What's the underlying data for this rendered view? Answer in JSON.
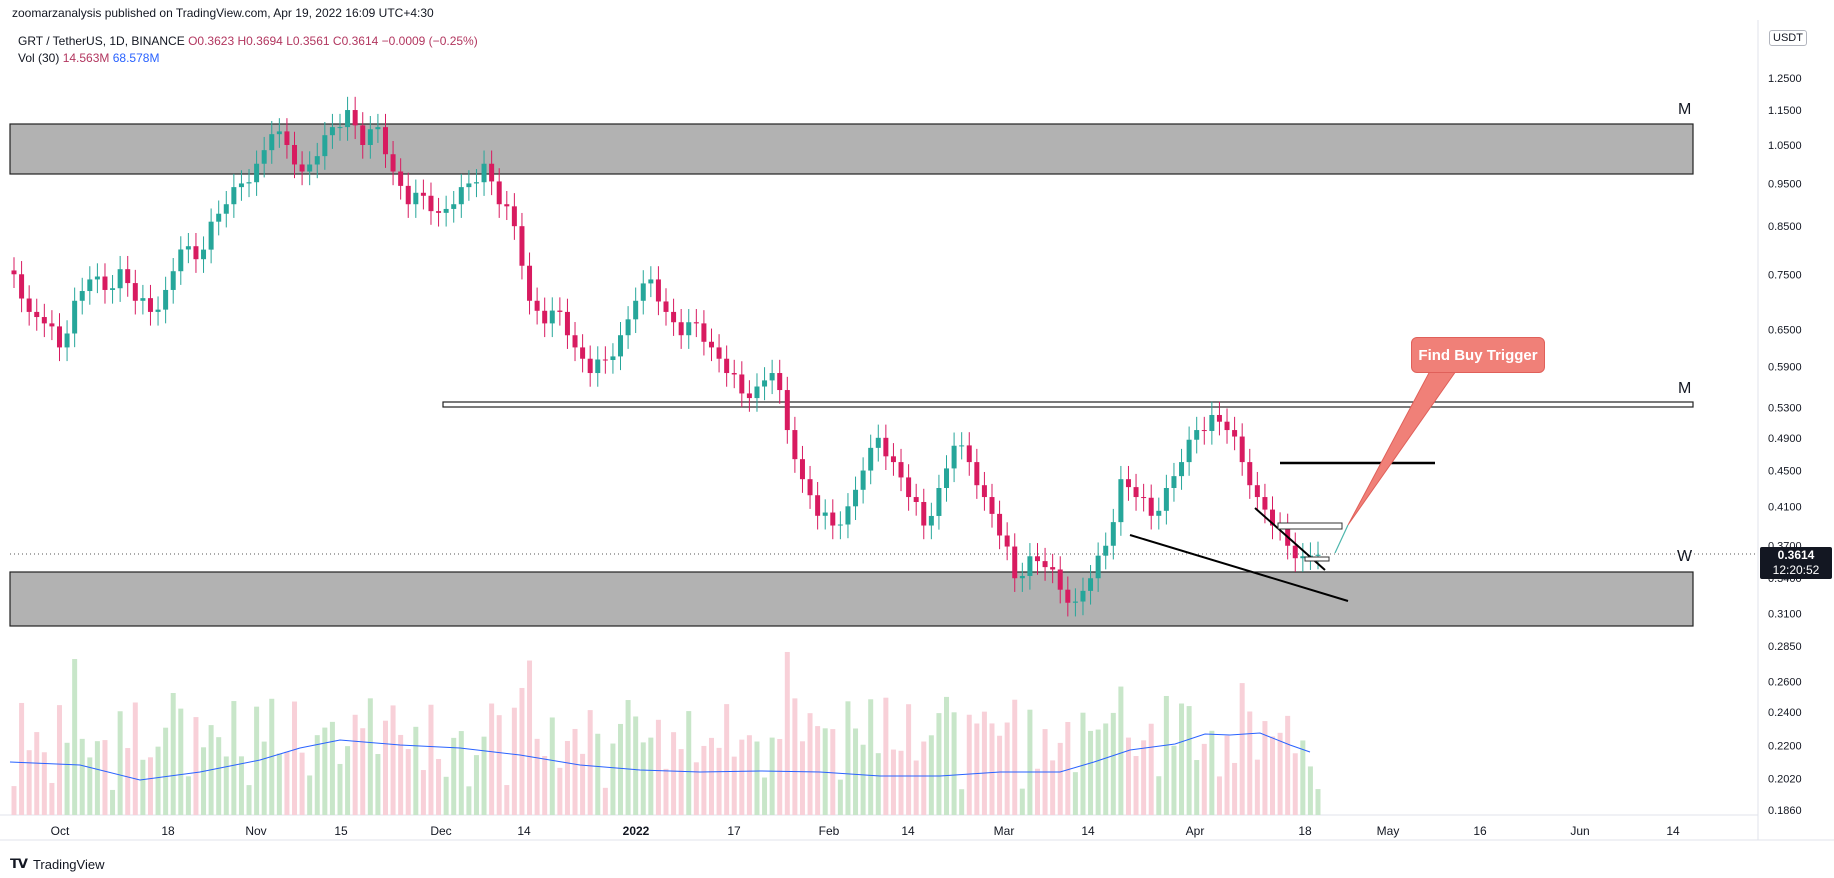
{
  "header": {
    "publisher": "zoomarzanalysis published on TradingView.com, Apr 19, 2022 16:09 UTC+4:30"
  },
  "legend": {
    "symbol": "GRT / TetherUS, 1D, BINANCE",
    "open": "O0.3623",
    "high": "H0.3694",
    "low": "L0.3561",
    "close": "C0.3614",
    "change": "−0.0009 (−0.25%)",
    "vol_label": "Vol (30)",
    "vol_value": "14.563M",
    "vol_ma": "68.578M"
  },
  "price_axis": {
    "currency": "USDT",
    "current_price": "0.3614",
    "countdown": "12:20:52"
  },
  "annotations": {
    "callout": "Find Buy Trigger",
    "zone_top_label": "M",
    "line_mid_label": "M",
    "zone_bottom_label": "W"
  },
  "footer": {
    "brand": "TradingView"
  },
  "colors": {
    "up": "#26a69a",
    "down": "#d81b60",
    "vol_up": "#c8e6c9",
    "vol_down": "#f8d0d8",
    "vol_ma": "#2962ff",
    "zone": "#b2b2b2",
    "callout": "#f08078"
  },
  "chart_data": {
    "type": "candlestick",
    "symbol": "GRT/USDT",
    "y_scale": "log",
    "ylim": [
      0.177,
      1.4
    ],
    "y_ticks": [
      "1.2500",
      "1.1500",
      "1.0500",
      "0.9500",
      "0.8500",
      "0.7500",
      "0.6500",
      "0.5900",
      "0.5300",
      "0.4900",
      "0.4500",
      "0.4100",
      "0.3700",
      "0.3400",
      "0.3100",
      "0.2850",
      "0.2600",
      "0.2400",
      "0.2200",
      "0.2020",
      "0.1860"
    ],
    "x_ticks": [
      "Oct",
      "18",
      "Nov",
      "15",
      "Dec",
      "14",
      "2022",
      "17",
      "Feb",
      "14",
      "Mar",
      "14",
      "Apr",
      "18",
      "May",
      "16",
      "Jun",
      "14"
    ],
    "levels": {
      "top_zone": [
        0.965,
        1.12
      ],
      "resistance_line": 0.53,
      "target_line": 0.46,
      "bottom_zone": [
        0.3,
        0.352
      ],
      "current_price": 0.3614
    },
    "closes_approx": [
      0.75,
      0.68,
      0.66,
      0.62,
      0.7,
      0.74,
      0.72,
      0.76,
      0.7,
      0.68,
      0.72,
      0.8,
      0.78,
      0.86,
      0.9,
      0.95,
      1.0,
      1.08,
      1.05,
      0.98,
      1.02,
      1.1,
      1.15,
      1.05,
      1.1,
      0.98,
      0.9,
      0.92,
      0.88,
      0.9,
      0.95,
      1.0,
      0.9,
      0.85,
      0.7,
      0.66,
      0.68,
      0.62,
      0.58,
      0.6,
      0.64,
      0.7,
      0.74,
      0.68,
      0.64,
      0.66,
      0.62,
      0.58,
      0.55,
      0.56,
      0.58,
      0.5,
      0.44,
      0.4,
      0.39,
      0.41,
      0.45,
      0.49,
      0.46,
      0.42,
      0.39,
      0.43,
      0.48,
      0.46,
      0.42,
      0.38,
      0.34,
      0.36,
      0.35,
      0.33,
      0.32,
      0.34,
      0.37,
      0.44,
      0.42,
      0.4,
      0.43,
      0.46,
      0.5,
      0.52,
      0.5,
      0.46,
      0.42,
      0.39,
      0.37,
      0.36,
      0.3614
    ]
  }
}
